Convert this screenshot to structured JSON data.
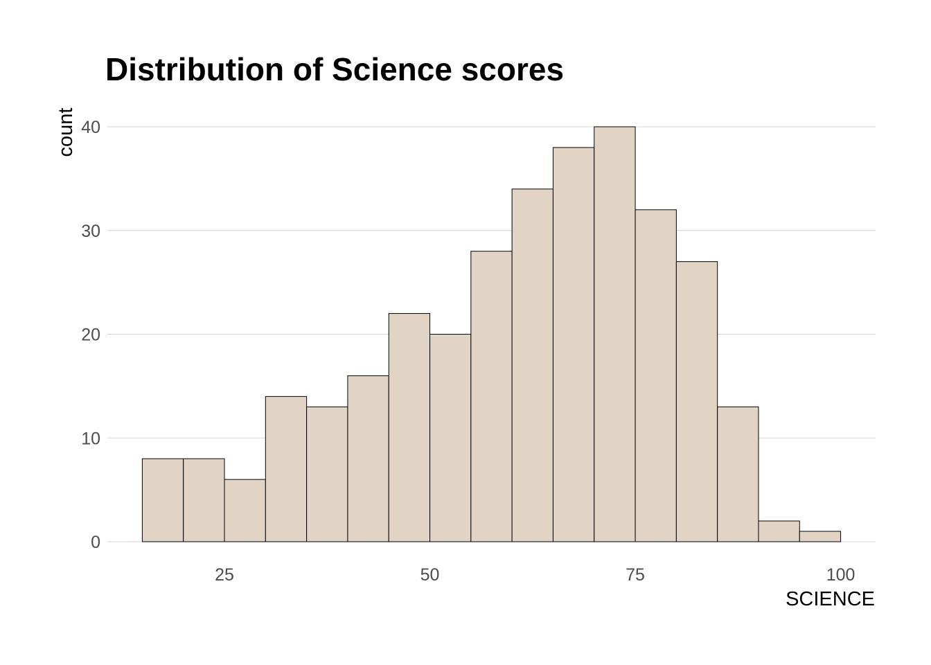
{
  "chart_data": {
    "type": "bar",
    "subtype": "histogram",
    "title": "Distribution of Science scores",
    "xlabel": "SCIENCE",
    "ylabel": "count",
    "bin_width": 5,
    "bins": [
      {
        "start": 15,
        "end": 20,
        "count": 8
      },
      {
        "start": 20,
        "end": 25,
        "count": 8
      },
      {
        "start": 25,
        "end": 30,
        "count": 6
      },
      {
        "start": 30,
        "end": 35,
        "count": 14
      },
      {
        "start": 35,
        "end": 40,
        "count": 13
      },
      {
        "start": 40,
        "end": 45,
        "count": 16
      },
      {
        "start": 45,
        "end": 50,
        "count": 22
      },
      {
        "start": 50,
        "end": 55,
        "count": 20
      },
      {
        "start": 55,
        "end": 60,
        "count": 28
      },
      {
        "start": 60,
        "end": 65,
        "count": 34
      },
      {
        "start": 65,
        "end": 70,
        "count": 38
      },
      {
        "start": 70,
        "end": 75,
        "count": 40
      },
      {
        "start": 75,
        "end": 80,
        "count": 32
      },
      {
        "start": 80,
        "end": 85,
        "count": 27
      },
      {
        "start": 85,
        "end": 90,
        "count": 13
      },
      {
        "start": 90,
        "end": 95,
        "count": 2
      },
      {
        "start": 95,
        "end": 100,
        "count": 1
      }
    ],
    "xlim": [
      10.75,
      104.25
    ],
    "ylim": [
      0,
      40
    ],
    "x_ticks": [
      25,
      50,
      75,
      100
    ],
    "y_ticks": [
      0,
      10,
      20,
      30,
      40
    ],
    "grid": "horizontal",
    "bar_fill": "#e1d4c5",
    "bar_outline": "#000000",
    "legend": "none"
  }
}
